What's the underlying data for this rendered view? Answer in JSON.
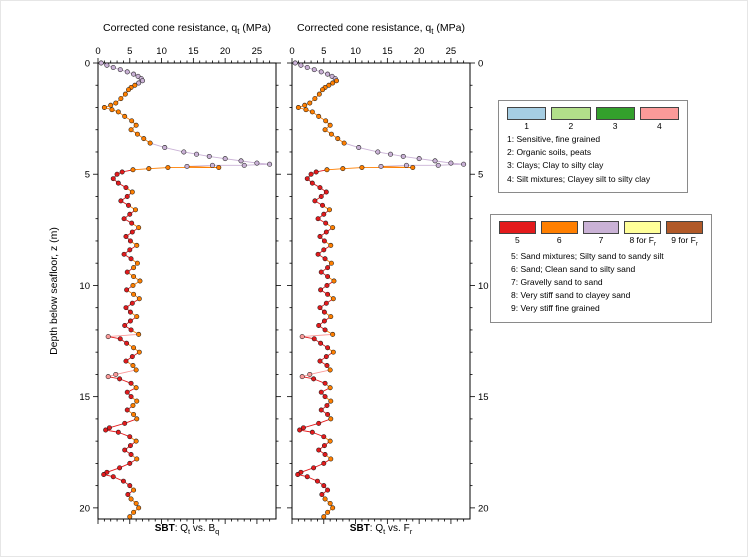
{
  "figure": {
    "x_axis_title": "Corrected cone resistance, q~t~ (MPa)",
    "y_axis_label": "Depth below seafloor, z (m)"
  },
  "legend1": {
    "swatches": [
      {
        "label": "1",
        "color": "#a6cee3"
      },
      {
        "label": "2",
        "color": "#b2df8a"
      },
      {
        "label": "3",
        "color": "#33a02c"
      },
      {
        "label": "4",
        "color": "#fb9a99"
      }
    ],
    "lines": [
      "1: Sensitive, fine grained",
      "2: Organic soils, peats",
      "3: Clays; Clay to silty clay",
      "4: Silt mixtures; Clayey silt to silty clay"
    ]
  },
  "legend2": {
    "swatches": [
      {
        "label": "5",
        "color": "#e31a1c"
      },
      {
        "label": "6",
        "color": "#ff7f00"
      },
      {
        "label": "7",
        "color": "#cab2d6"
      },
      {
        "label": "8 for F~r~",
        "color": "#ffff99"
      },
      {
        "label": "9 for F~r~",
        "color": "#b15928"
      }
    ],
    "lines": [
      "5: Sand mixtures; Silty sand to sandy silt",
      "6: Sand; Clean sand to silty sand",
      "7: Gravelly sand to sand",
      "8: Very stiff sand to clayey sand",
      "9: Very stiff fine grained"
    ]
  },
  "chart_data": {
    "type": "scatter",
    "title": "Corrected cone resistance, qt (MPa)",
    "xlabel": "Corrected cone resistance, qt (MPa)",
    "ylabel": "Depth below seafloor, z (m)",
    "xlim": [
      0,
      28
    ],
    "ylim_depth": [
      0,
      20.5
    ],
    "y_axis_inverted": true,
    "x_ticks": [
      0,
      5,
      10,
      15,
      20,
      25
    ],
    "y_ticks": [
      0,
      5,
      10,
      15,
      20
    ],
    "grid": false,
    "panels": [
      {
        "subtitle": "**SBT**: Q~t~ vs. B~q~",
        "classification": "Qt vs. Bq",
        "y_tick_labels_side": "left",
        "class_index": 2
      },
      {
        "subtitle": "**SBT**: Q~t~ vs. F~r~",
        "classification": "Qt vs. Fr",
        "y_tick_labels_side": "right",
        "class_index": 3
      }
    ],
    "sbt_class_colors": {
      "1": "#a6cee3",
      "2": "#b2df8a",
      "3": "#33a02c",
      "4": "#fb9a99",
      "5": "#e31a1c",
      "6": "#ff7f00",
      "7": "#cab2d6",
      "8": "#ffff99",
      "9": "#b15928"
    },
    "points_format": [
      "depth_m",
      "qt_MPa",
      "sbt_class_bq",
      "sbt_class_fr"
    ],
    "points": [
      [
        0.0,
        0.5,
        7,
        7
      ],
      [
        0.1,
        1.4,
        7,
        7
      ],
      [
        0.2,
        2.4,
        7,
        7
      ],
      [
        0.3,
        3.5,
        7,
        7
      ],
      [
        0.4,
        4.6,
        7,
        7
      ],
      [
        0.5,
        5.6,
        7,
        7
      ],
      [
        0.6,
        6.3,
        7,
        7
      ],
      [
        0.7,
        6.8,
        7,
        7
      ],
      [
        0.8,
        7.0,
        7,
        6
      ],
      [
        0.9,
        6.4,
        7,
        6
      ],
      [
        1.0,
        5.8,
        6,
        6
      ],
      [
        1.1,
        5.2,
        6,
        6
      ],
      [
        1.2,
        4.8,
        6,
        6
      ],
      [
        1.4,
        4.3,
        6,
        6
      ],
      [
        1.6,
        3.6,
        6,
        6
      ],
      [
        1.8,
        2.8,
        6,
        6
      ],
      [
        1.9,
        2.0,
        6,
        6
      ],
      [
        2.0,
        1.0,
        6,
        6
      ],
      [
        2.1,
        2.2,
        6,
        6
      ],
      [
        2.2,
        3.2,
        6,
        6
      ],
      [
        2.4,
        4.2,
        6,
        6
      ],
      [
        2.6,
        5.3,
        6,
        6
      ],
      [
        2.8,
        6.0,
        6,
        6
      ],
      [
        3.0,
        5.2,
        6,
        6
      ],
      [
        3.2,
        6.2,
        6,
        6
      ],
      [
        3.4,
        7.2,
        6,
        6
      ],
      [
        3.6,
        8.2,
        6,
        6
      ],
      [
        3.8,
        10.5,
        7,
        7
      ],
      [
        4.0,
        13.5,
        7,
        7
      ],
      [
        4.1,
        15.5,
        7,
        7
      ],
      [
        4.2,
        17.5,
        7,
        7
      ],
      [
        4.3,
        20.0,
        7,
        7
      ],
      [
        4.4,
        22.5,
        7,
        7
      ],
      [
        4.5,
        25.0,
        7,
        7
      ],
      [
        4.55,
        27.0,
        7,
        7
      ],
      [
        4.6,
        23.0,
        7,
        7
      ],
      [
        4.6,
        18.0,
        7,
        7
      ],
      [
        4.65,
        14.0,
        7,
        7
      ],
      [
        4.7,
        19.0,
        6,
        6
      ],
      [
        4.7,
        11.0,
        6,
        6
      ],
      [
        4.75,
        8.0,
        6,
        6
      ],
      [
        4.8,
        5.5,
        6,
        6
      ],
      [
        4.9,
        3.8,
        5,
        5
      ],
      [
        5.0,
        3.0,
        5,
        5
      ],
      [
        5.2,
        2.4,
        5,
        5
      ],
      [
        5.4,
        3.2,
        5,
        5
      ],
      [
        5.6,
        4.4,
        5,
        5
      ],
      [
        5.8,
        5.4,
        6,
        5
      ],
      [
        6.0,
        4.6,
        5,
        5
      ],
      [
        6.2,
        3.6,
        5,
        5
      ],
      [
        6.4,
        4.8,
        5,
        5
      ],
      [
        6.6,
        5.9,
        6,
        6
      ],
      [
        6.8,
        5.0,
        5,
        5
      ],
      [
        7.0,
        4.1,
        5,
        5
      ],
      [
        7.2,
        5.3,
        5,
        5
      ],
      [
        7.4,
        6.4,
        6,
        6
      ],
      [
        7.6,
        5.4,
        5,
        5
      ],
      [
        7.8,
        4.4,
        5,
        5
      ],
      [
        8.0,
        5.1,
        5,
        5
      ],
      [
        8.2,
        6.1,
        6,
        6
      ],
      [
        8.4,
        5.0,
        5,
        5
      ],
      [
        8.6,
        4.1,
        5,
        5
      ],
      [
        8.8,
        5.2,
        5,
        5
      ],
      [
        9.0,
        6.2,
        6,
        6
      ],
      [
        9.2,
        5.6,
        6,
        5
      ],
      [
        9.4,
        4.6,
        5,
        5
      ],
      [
        9.6,
        5.6,
        6,
        5
      ],
      [
        9.8,
        6.6,
        6,
        6
      ],
      [
        10.0,
        5.5,
        6,
        5
      ],
      [
        10.2,
        4.5,
        5,
        5
      ],
      [
        10.4,
        5.6,
        6,
        5
      ],
      [
        10.6,
        6.5,
        6,
        6
      ],
      [
        10.8,
        5.4,
        5,
        5
      ],
      [
        11.0,
        4.4,
        5,
        5
      ],
      [
        11.2,
        5.1,
        5,
        5
      ],
      [
        11.4,
        6.1,
        6,
        6
      ],
      [
        11.6,
        5.1,
        5,
        5
      ],
      [
        11.8,
        4.2,
        5,
        5
      ],
      [
        12.0,
        5.2,
        5,
        5
      ],
      [
        12.2,
        6.4,
        6,
        6
      ],
      [
        12.3,
        1.6,
        4,
        4
      ],
      [
        12.4,
        3.5,
        5,
        5
      ],
      [
        12.6,
        4.5,
        5,
        5
      ],
      [
        12.8,
        5.6,
        6,
        5
      ],
      [
        13.0,
        6.5,
        6,
        6
      ],
      [
        13.2,
        5.4,
        5,
        5
      ],
      [
        13.4,
        4.4,
        5,
        5
      ],
      [
        13.6,
        5.5,
        6,
        5
      ],
      [
        13.8,
        6.0,
        6,
        6
      ],
      [
        14.0,
        2.8,
        4,
        4
      ],
      [
        14.1,
        1.6,
        4,
        4
      ],
      [
        14.2,
        3.4,
        5,
        5
      ],
      [
        14.4,
        5.2,
        5,
        5
      ],
      [
        14.6,
        6.0,
        6,
        6
      ],
      [
        14.8,
        4.6,
        5,
        5
      ],
      [
        15.0,
        5.2,
        5,
        5
      ],
      [
        15.2,
        6.1,
        6,
        6
      ],
      [
        15.4,
        5.5,
        6,
        5
      ],
      [
        15.6,
        4.6,
        5,
        5
      ],
      [
        15.8,
        5.6,
        6,
        5
      ],
      [
        16.0,
        6.1,
        6,
        6
      ],
      [
        16.2,
        4.2,
        5,
        5
      ],
      [
        16.4,
        1.8,
        5,
        5
      ],
      [
        16.5,
        1.2,
        5,
        5
      ],
      [
        16.6,
        3.2,
        5,
        5
      ],
      [
        16.8,
        5.0,
        5,
        5
      ],
      [
        17.0,
        6.0,
        6,
        6
      ],
      [
        17.2,
        5.1,
        5,
        5
      ],
      [
        17.4,
        4.2,
        5,
        5
      ],
      [
        17.6,
        5.2,
        5,
        5
      ],
      [
        17.8,
        6.1,
        6,
        6
      ],
      [
        18.0,
        5.0,
        5,
        5
      ],
      [
        18.2,
        3.4,
        5,
        5
      ],
      [
        18.4,
        1.4,
        5,
        5
      ],
      [
        18.5,
        0.9,
        5,
        5
      ],
      [
        18.6,
        2.4,
        5,
        5
      ],
      [
        18.8,
        4.0,
        5,
        5
      ],
      [
        19.0,
        5.0,
        5,
        5
      ],
      [
        19.2,
        5.6,
        6,
        5
      ],
      [
        19.4,
        4.7,
        5,
        5
      ],
      [
        19.6,
        5.2,
        6,
        6
      ],
      [
        19.8,
        6.0,
        6,
        6
      ],
      [
        20.0,
        6.4,
        6,
        6
      ],
      [
        20.2,
        5.6,
        6,
        6
      ],
      [
        20.4,
        5.0,
        6,
        6
      ]
    ]
  }
}
